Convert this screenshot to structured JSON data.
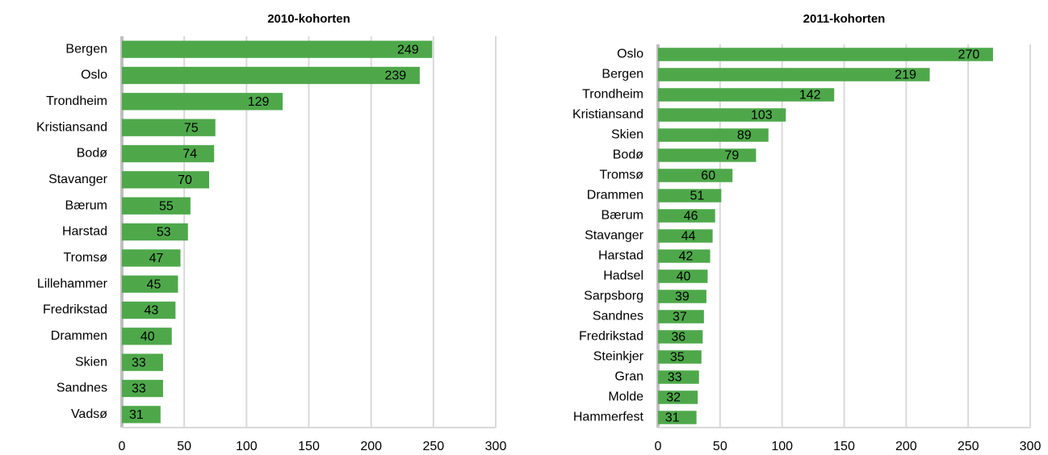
{
  "chart_data": [
    {
      "type": "bar",
      "orientation": "horizontal",
      "title": "2010-kohorten",
      "categories": [
        "Bergen",
        "Oslo",
        "Trondheim",
        "Kristiansand",
        "Bodø",
        "Stavanger",
        "Bærum",
        "Harstad",
        "Tromsø",
        "Lillehammer",
        "Fredrikstad",
        "Drammen",
        "Skien",
        "Sandnes",
        "Vadsø"
      ],
      "values": [
        249,
        239,
        129,
        75,
        74,
        70,
        55,
        53,
        47,
        45,
        43,
        40,
        33,
        33,
        31
      ],
      "color": "#4ea84a",
      "xlim": [
        0,
        300
      ],
      "xticks": [
        0,
        50,
        100,
        150,
        200,
        250,
        300
      ],
      "grid": true
    },
    {
      "type": "bar",
      "orientation": "horizontal",
      "title": "2011-kohorten",
      "categories": [
        "Oslo",
        "Bergen",
        "Trondheim",
        "Kristiansand",
        "Skien",
        "Bodø",
        "Tromsø",
        "Drammen",
        "Bærum",
        "Stavanger",
        "Harstad",
        "Hadsel",
        "Sarpsborg",
        "Sandnes",
        "Fredrikstad",
        "Steinkjer",
        "Gran",
        "Molde",
        "Hammerfest"
      ],
      "values": [
        270,
        219,
        142,
        103,
        89,
        79,
        60,
        51,
        46,
        44,
        42,
        40,
        39,
        37,
        36,
        35,
        33,
        32,
        31
      ],
      "color": "#4ea84a",
      "xlim": [
        0,
        300
      ],
      "xticks": [
        0,
        50,
        100,
        150,
        200,
        250,
        300
      ],
      "grid": true
    }
  ]
}
